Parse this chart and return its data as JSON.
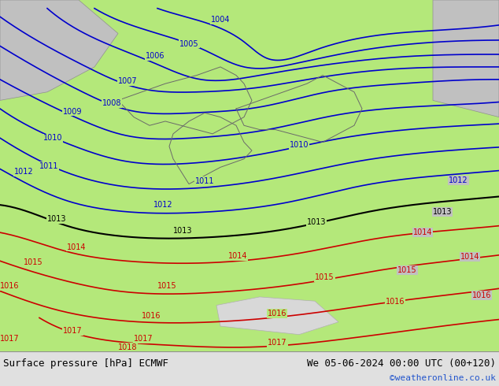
{
  "title_left": "Surface pressure [hPa] ECMWF",
  "title_right": "We 05-06-2024 00:00 UTC (00+120)",
  "copyright": "©weatheronline.co.uk",
  "bg_color_ocean": "#c8c8c8",
  "bg_color_land_green": "#aae67a",
  "bg_color_land_gray": "#c8c8c8",
  "bg_color_mountain": "#d8d8d8",
  "footer_bg": "#e8e8e8",
  "blue_isobar_color": "#0000cc",
  "red_isobar_color": "#cc0000",
  "black_isobar_color": "#000000",
  "border_color": "#a0a0a0",
  "bottom_bar_height": 0.09,
  "figsize": [
    6.34,
    4.9
  ],
  "dpi": 100,
  "blue_labels": [
    "1004",
    "1005",
    "1006",
    "1007",
    "1008",
    "1009",
    "1010",
    "1011",
    "1012",
    "1012",
    "1010",
    "1011",
    "1012"
  ],
  "red_labels": [
    "1014",
    "1014",
    "1015",
    "1015",
    "1016",
    "1015",
    "1014",
    "1015",
    "1016",
    "1017",
    "1017",
    "1016",
    "1017",
    "1018",
    "1016",
    "1015",
    "1016",
    "1016",
    "1014"
  ],
  "black_labels": [
    "1013",
    "1013",
    "1013",
    "1013"
  ]
}
